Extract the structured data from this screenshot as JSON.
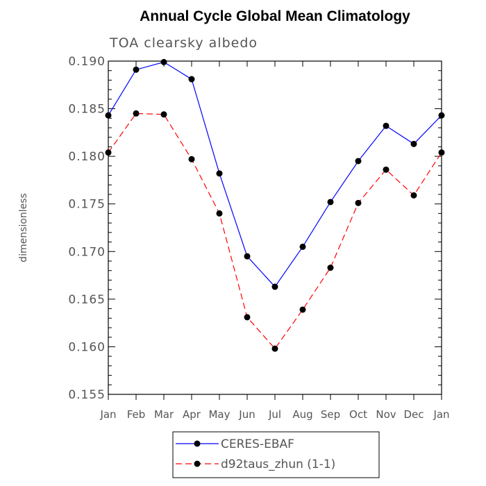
{
  "chart_data": {
    "type": "line",
    "title": "Annual Cycle Global Mean Climatology",
    "subtitle": "TOA clearsky albedo",
    "xlabel": "",
    "ylabel": "dimensionless",
    "categories": [
      "Jan",
      "Feb",
      "Mar",
      "Apr",
      "May",
      "Jun",
      "Jul",
      "Aug",
      "Sep",
      "Oct",
      "Nov",
      "Dec",
      "Jan"
    ],
    "ylim": [
      0.155,
      0.19
    ],
    "yticks": [
      "0.155",
      "0.160",
      "0.165",
      "0.170",
      "0.175",
      "0.180",
      "0.185",
      "0.190"
    ],
    "grid": false,
    "legend_position": "bottom",
    "series": [
      {
        "name": "CERES-EBAF",
        "color": "#0000ff",
        "dash": "solid",
        "values": [
          0.1843,
          0.1891,
          0.1899,
          0.1881,
          0.1782,
          0.1695,
          0.1663,
          0.1705,
          0.1752,
          0.1795,
          0.1832,
          0.1813,
          0.1843
        ]
      },
      {
        "name": "d92taus_zhun (1-1)",
        "color": "#ff0000",
        "dash": "dashed",
        "values": [
          0.1804,
          0.1845,
          0.1844,
          0.1797,
          0.174,
          0.1631,
          0.1598,
          0.1639,
          0.1683,
          0.1751,
          0.1786,
          0.1759,
          0.1804
        ]
      }
    ]
  }
}
